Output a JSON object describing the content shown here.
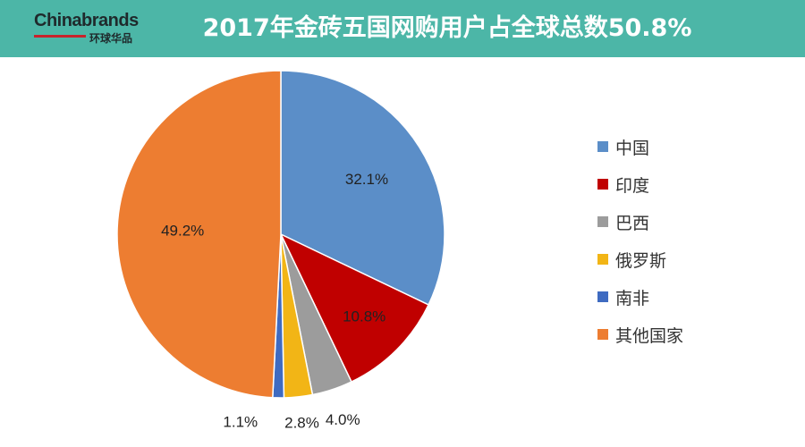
{
  "header": {
    "logo_text": "Chinabrands",
    "logo_subtext": "环球华品",
    "title": "2017年金砖五国网购用户占全球总数50.8%",
    "bg_color": "#4cb6a7"
  },
  "chart_data": {
    "type": "pie",
    "title": "2017年金砖五国网购用户占全球总数50.8%",
    "slices": [
      {
        "label": "中国",
        "value": 32.1,
        "display": "32.1%",
        "color": "#5b8ec8"
      },
      {
        "label": "印度",
        "value": 10.8,
        "display": "10.8%",
        "color": "#c00000"
      },
      {
        "label": "巴西",
        "value": 4.0,
        "display": "4.0%",
        "color": "#9c9c9c"
      },
      {
        "label": "俄罗斯",
        "value": 2.8,
        "display": "2.8%",
        "color": "#f2b516"
      },
      {
        "label": "南非",
        "value": 1.1,
        "display": "1.1%",
        "color": "#3f6bc1"
      },
      {
        "label": "其他国家",
        "value": 49.2,
        "display": "49.2%",
        "color": "#ed7d31"
      }
    ],
    "legend_position": "right",
    "start_angle": "12 o'clock",
    "direction": "clockwise"
  }
}
